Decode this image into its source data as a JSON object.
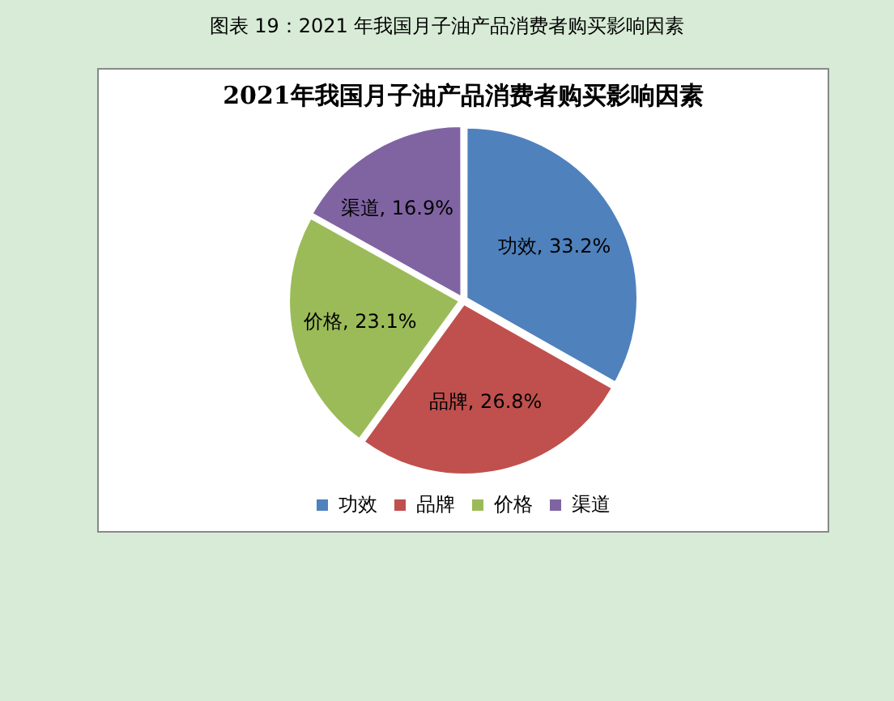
{
  "chart_data": {
    "type": "pie",
    "title": "2021年我国月子油产品消费者购买影响因素",
    "annotations": [
      "图表 19：2021 年我国月子油产品消费者购买影响因素"
    ],
    "categories": [
      "功效",
      "品牌",
      "价格",
      "渠道"
    ],
    "values": [
      33.2,
      26.8,
      23.1,
      16.9
    ],
    "value_labels": [
      "功效, 33.2%",
      "品牌, 26.8%",
      "价格, 23.1%",
      "渠道, 16.9%"
    ],
    "colors": [
      "#4f81bd",
      "#c0504d",
      "#9bbb59",
      "#8064a2"
    ],
    "legend": "bottom"
  }
}
